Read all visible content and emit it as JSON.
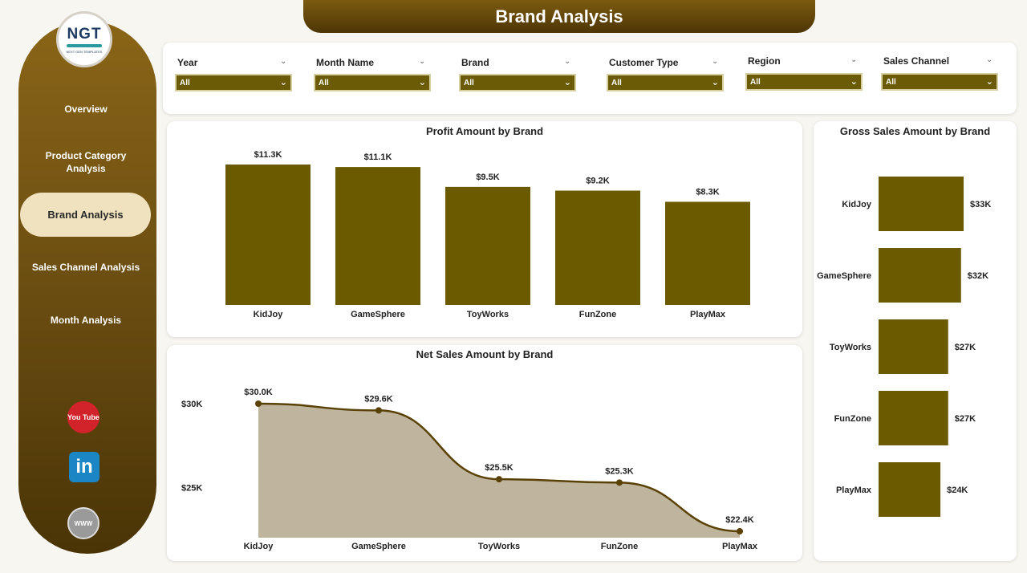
{
  "title": "Brand Analysis",
  "logo": {
    "text": "NGT",
    "sub": "NEXT GEN TEMPLATES"
  },
  "nav": [
    {
      "label": "Overview"
    },
    {
      "label": "Product Category Analysis"
    },
    {
      "label": "Brand Analysis"
    },
    {
      "label": "Sales Channel Analysis"
    },
    {
      "label": "Month Analysis"
    }
  ],
  "social": {
    "youtube": "You Tube",
    "linkedin": "in",
    "web": "WWW"
  },
  "filters": [
    {
      "label": "Year",
      "value": "All"
    },
    {
      "label": "Month Name",
      "value": "All"
    },
    {
      "label": "Brand",
      "value": "All"
    },
    {
      "label": "Customer Type",
      "value": "All"
    },
    {
      "label": "Region",
      "value": "All"
    },
    {
      "label": "Sales Channel",
      "value": "All"
    }
  ],
  "colors": {
    "bar": "#6b5a00",
    "area_fill": "#bfb59e",
    "line": "#5a4106",
    "accent": "#7c5b10"
  },
  "chart_data": [
    {
      "type": "bar",
      "title": "Profit Amount by Brand",
      "categories": [
        "KidJoy",
        "GameSphere",
        "ToyWorks",
        "FunZone",
        "PlayMax"
      ],
      "values": [
        11.3,
        11.1,
        9.5,
        9.2,
        8.3
      ],
      "data_labels": [
        "$11.3K",
        "$11.1K",
        "$9.5K",
        "$9.2K",
        "$8.3K"
      ],
      "ylim": [
        0,
        11.3
      ]
    },
    {
      "type": "area",
      "title": "Net Sales Amount by Brand",
      "categories": [
        "KidJoy",
        "GameSphere",
        "ToyWorks",
        "FunZone",
        "PlayMax"
      ],
      "values": [
        30.0,
        29.6,
        25.5,
        25.3,
        22.4
      ],
      "data_labels": [
        "$30.0K",
        "$29.6K",
        "$25.5K",
        "$25.3K",
        "$22.4K"
      ],
      "y_ticks": [
        "$30K",
        "$25K"
      ],
      "y_tick_values": [
        30,
        25
      ],
      "ylim": [
        22.4,
        30.0
      ]
    },
    {
      "type": "bar",
      "orientation": "horizontal",
      "title": "Gross Sales Amount by Brand",
      "categories": [
        "KidJoy",
        "GameSphere",
        "ToyWorks",
        "FunZone",
        "PlayMax"
      ],
      "values": [
        33,
        32,
        27,
        27,
        24
      ],
      "data_labels": [
        "$33K",
        "$32K",
        "$27K",
        "$27K",
        "$24K"
      ],
      "xlim": [
        0,
        33
      ]
    }
  ]
}
